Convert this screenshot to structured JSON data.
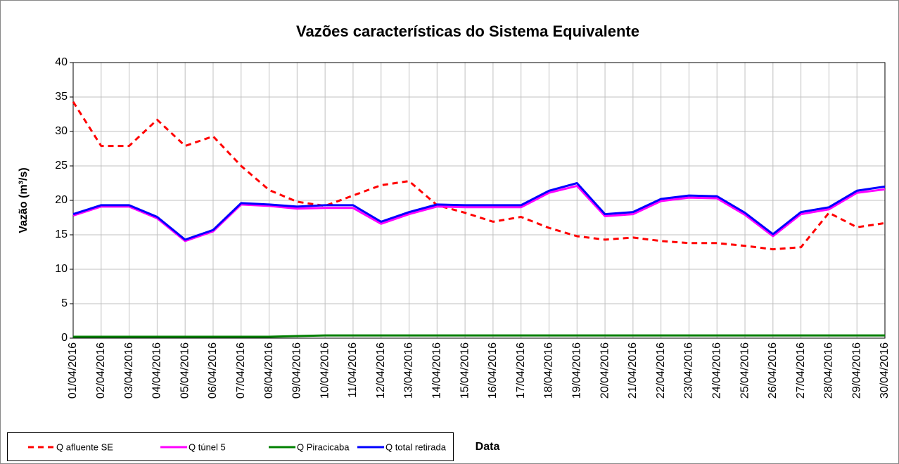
{
  "chart_data": {
    "type": "line",
    "title": "Vazões características do Sistema  Equivalente",
    "x_label": "Data",
    "y_label": "Vazão (m³/s)",
    "categories": [
      "01/04/2016",
      "02/04/2016",
      "03/04/2016",
      "04/04/2016",
      "05/04/2016",
      "06/04/2016",
      "07/04/2016",
      "08/04/2016",
      "09/04/2016",
      "10/04/2016",
      "11/04/2016",
      "12/04/2016",
      "13/04/2016",
      "14/04/2016",
      "15/04/2016",
      "16/04/2016",
      "17/04/2016",
      "18/04/2016",
      "19/04/2016",
      "20/04/2016",
      "21/04/2016",
      "22/04/2016",
      "23/04/2016",
      "24/04/2016",
      "25/04/2016",
      "26/04/2016",
      "27/04/2016",
      "28/04/2016",
      "29/04/2016",
      "30/04/2016"
    ],
    "series": [
      {
        "name": "Q afluente SE",
        "color": "#ff0000",
        "dashed": true,
        "values": [
          34.3,
          27.9,
          27.9,
          31.7,
          27.9,
          29.3,
          25.0,
          21.5,
          19.8,
          19.2,
          20.7,
          22.2,
          22.8,
          19.3,
          18.2,
          16.9,
          17.6,
          16.0,
          14.8,
          14.3,
          14.6,
          14.1,
          13.8,
          13.8,
          13.4,
          12.9,
          13.2,
          18.2,
          16.1,
          16.7
        ]
      },
      {
        "name": "Q túnel 5",
        "color": "#ff00ff",
        "values": [
          17.8,
          19.1,
          19.1,
          17.4,
          14.1,
          15.5,
          19.4,
          19.2,
          18.8,
          18.9,
          18.9,
          16.6,
          18.0,
          19.1,
          19.0,
          19.0,
          19.0,
          21.1,
          22.1,
          17.7,
          18.0,
          19.9,
          20.4,
          20.3,
          17.9,
          14.8,
          18.0,
          18.7,
          21.1,
          21.6
        ]
      },
      {
        "name": "Q Piracicaba",
        "color": "#008000",
        "values": [
          0.2,
          0.2,
          0.2,
          0.2,
          0.2,
          0.2,
          0.2,
          0.2,
          0.3,
          0.4,
          0.4,
          0.4,
          0.4,
          0.4,
          0.4,
          0.4,
          0.4,
          0.4,
          0.4,
          0.4,
          0.4,
          0.4,
          0.4,
          0.4,
          0.4,
          0.4,
          0.4,
          0.4,
          0.4,
          0.4
        ]
      },
      {
        "name": "Q total retirada",
        "color": "#0000ff",
        "values": [
          18.0,
          19.3,
          19.3,
          17.6,
          14.3,
          15.7,
          19.6,
          19.4,
          19.1,
          19.3,
          19.3,
          16.9,
          18.3,
          19.4,
          19.3,
          19.3,
          19.3,
          21.4,
          22.5,
          18.0,
          18.3,
          20.2,
          20.7,
          20.6,
          18.2,
          15.1,
          18.3,
          19.0,
          21.4,
          22.0
        ]
      }
    ],
    "ylim": [
      0,
      40
    ],
    "yticks": [
      0,
      5,
      10,
      15,
      20,
      25,
      30,
      35,
      40
    ],
    "grid": true,
    "legend": "bottom-left"
  }
}
